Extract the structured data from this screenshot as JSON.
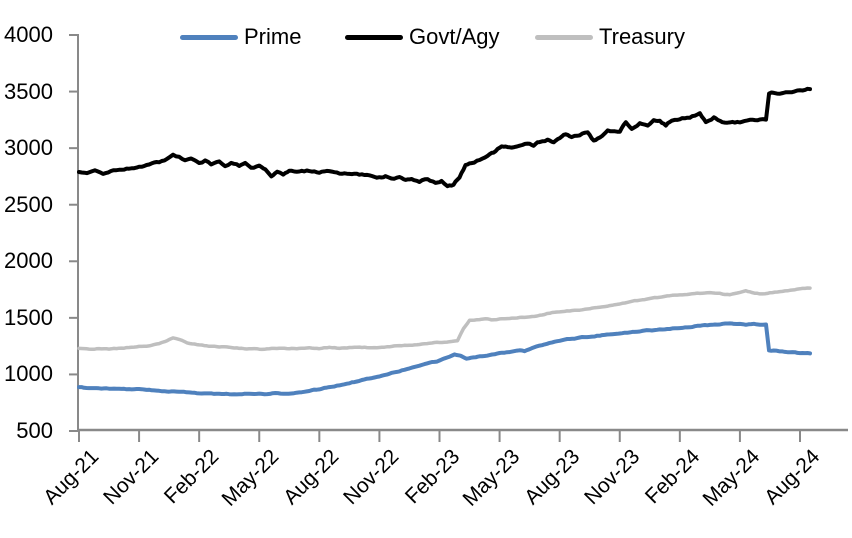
{
  "chart_data": {
    "type": "line",
    "title": "",
    "xlabel": "",
    "ylabel": "",
    "grid": false,
    "legend": {
      "position": "top"
    },
    "axis_color": "#898989",
    "x_axis": {
      "months_span": 36,
      "tick_interval_months": 3,
      "tick_labels": [
        "Aug-21",
        "Nov-21",
        "Feb-22",
        "May-22",
        "Aug-22",
        "Nov-22",
        "Feb-23",
        "May-23",
        "Aug-23",
        "Nov-23",
        "Feb-24",
        "May-24",
        "Aug-24"
      ]
    },
    "y_axis": {
      "min": 500,
      "max": 4000,
      "ticks": [
        4000,
        3500,
        3000,
        2500,
        2000,
        1500,
        1000,
        500
      ]
    },
    "series": [
      {
        "name": "Prime",
        "color": "#4F81BD",
        "points": [
          [
            0,
            885
          ],
          [
            0.5,
            880
          ],
          [
            1,
            877
          ],
          [
            1.5,
            874
          ],
          [
            2,
            872
          ],
          [
            2.5,
            870
          ],
          [
            3,
            868
          ],
          [
            3.5,
            863
          ],
          [
            4,
            857
          ],
          [
            4.5,
            851
          ],
          [
            5,
            845
          ],
          [
            5.5,
            840
          ],
          [
            6,
            835
          ],
          [
            6.5,
            830
          ],
          [
            7,
            827
          ],
          [
            7.5,
            825
          ],
          [
            8,
            827
          ],
          [
            8.5,
            830
          ],
          [
            9,
            833
          ],
          [
            9.4,
            829
          ],
          [
            9.8,
            835
          ],
          [
            10.2,
            830
          ],
          [
            10.6,
            834
          ],
          [
            11,
            843
          ],
          [
            11.5,
            852
          ],
          [
            12,
            870
          ],
          [
            12.5,
            888
          ],
          [
            13,
            906
          ],
          [
            13.5,
            925
          ],
          [
            14,
            944
          ],
          [
            14.5,
            965
          ],
          [
            15,
            986
          ],
          [
            15.5,
            1008
          ],
          [
            16,
            1030
          ],
          [
            16.5,
            1053
          ],
          [
            17,
            1076
          ],
          [
            17.5,
            1099
          ],
          [
            18,
            1122
          ],
          [
            18.4,
            1150
          ],
          [
            18.75,
            1176
          ],
          [
            19.05,
            1168
          ],
          [
            19.35,
            1140
          ],
          [
            19.7,
            1150
          ],
          [
            20,
            1158
          ],
          [
            20.5,
            1172
          ],
          [
            21,
            1188
          ],
          [
            21.5,
            1200
          ],
          [
            22,
            1213
          ],
          [
            22.25,
            1207
          ],
          [
            22.6,
            1235
          ],
          [
            23,
            1256
          ],
          [
            23.5,
            1278
          ],
          [
            24,
            1300
          ],
          [
            24.5,
            1313
          ],
          [
            25,
            1325
          ],
          [
            25.5,
            1335
          ],
          [
            26,
            1345
          ],
          [
            26.5,
            1355
          ],
          [
            27,
            1364
          ],
          [
            27.5,
            1372
          ],
          [
            28,
            1380
          ],
          [
            28.35,
            1396
          ],
          [
            28.6,
            1386
          ],
          [
            29,
            1397
          ],
          [
            29.5,
            1405
          ],
          [
            30,
            1412
          ],
          [
            30.5,
            1421
          ],
          [
            31,
            1430
          ],
          [
            31.5,
            1437
          ],
          [
            32,
            1443
          ],
          [
            32.4,
            1452
          ],
          [
            32.7,
            1444
          ],
          [
            33,
            1448
          ],
          [
            33.3,
            1438
          ],
          [
            33.7,
            1446
          ],
          [
            34,
            1437
          ],
          [
            34.3,
            1441
          ],
          [
            34.45,
            1213
          ],
          [
            34.8,
            1208
          ],
          [
            35,
            1206
          ],
          [
            35.5,
            1196
          ],
          [
            36,
            1190
          ],
          [
            36.5,
            1186
          ]
        ]
      },
      {
        "name": "Govt/Agy",
        "color": "#000000",
        "points": [
          [
            0,
            2790
          ],
          [
            0.4,
            2770
          ],
          [
            0.8,
            2793
          ],
          [
            1.2,
            2776
          ],
          [
            1.6,
            2798
          ],
          [
            2,
            2806
          ],
          [
            2.5,
            2818
          ],
          [
            3,
            2830
          ],
          [
            3.5,
            2850
          ],
          [
            4,
            2876
          ],
          [
            4.4,
            2903
          ],
          [
            4.7,
            2938
          ],
          [
            5,
            2918
          ],
          [
            5.3,
            2886
          ],
          [
            5.6,
            2904
          ],
          [
            6,
            2862
          ],
          [
            6.3,
            2888
          ],
          [
            6.6,
            2856
          ],
          [
            7,
            2876
          ],
          [
            7.3,
            2848
          ],
          [
            7.6,
            2868
          ],
          [
            8,
            2842
          ],
          [
            8.3,
            2862
          ],
          [
            8.6,
            2830
          ],
          [
            9,
            2846
          ],
          [
            9.3,
            2818
          ],
          [
            9.6,
            2756
          ],
          [
            9.9,
            2798
          ],
          [
            10.2,
            2772
          ],
          [
            10.5,
            2798
          ],
          [
            11,
            2788
          ],
          [
            11.5,
            2800
          ],
          [
            12,
            2790
          ],
          [
            12.5,
            2794
          ],
          [
            13,
            2774
          ],
          [
            13.5,
            2780
          ],
          [
            14,
            2762
          ],
          [
            14.5,
            2766
          ],
          [
            15,
            2742
          ],
          [
            15.3,
            2750
          ],
          [
            15.6,
            2722
          ],
          [
            16,
            2740
          ],
          [
            16.3,
            2712
          ],
          [
            16.6,
            2736
          ],
          [
            17,
            2708
          ],
          [
            17.4,
            2726
          ],
          [
            17.8,
            2692
          ],
          [
            18.1,
            2708
          ],
          [
            18.4,
            2668
          ],
          [
            18.7,
            2680
          ],
          [
            19,
            2744
          ],
          [
            19.3,
            2850
          ],
          [
            19.6,
            2870
          ],
          [
            20,
            2898
          ],
          [
            20.4,
            2936
          ],
          [
            20.7,
            2960
          ],
          [
            21,
            3004
          ],
          [
            21.3,
            3020
          ],
          [
            21.6,
            3000
          ],
          [
            22,
            3030
          ],
          [
            22.4,
            3040
          ],
          [
            22.7,
            3022
          ],
          [
            23,
            3056
          ],
          [
            23.4,
            3074
          ],
          [
            23.7,
            3052
          ],
          [
            24,
            3086
          ],
          [
            24.3,
            3126
          ],
          [
            24.6,
            3104
          ],
          [
            25,
            3120
          ],
          [
            25.4,
            3140
          ],
          [
            25.7,
            3062
          ],
          [
            26,
            3086
          ],
          [
            26.4,
            3150
          ],
          [
            27,
            3140
          ],
          [
            27.3,
            3230
          ],
          [
            27.6,
            3180
          ],
          [
            28,
            3220
          ],
          [
            28.4,
            3192
          ],
          [
            28.7,
            3240
          ],
          [
            29,
            3250
          ],
          [
            29.3,
            3198
          ],
          [
            29.6,
            3250
          ],
          [
            30,
            3260
          ],
          [
            30.5,
            3270
          ],
          [
            31,
            3310
          ],
          [
            31.3,
            3228
          ],
          [
            31.7,
            3270
          ],
          [
            32,
            3236
          ],
          [
            32.5,
            3222
          ],
          [
            33,
            3232
          ],
          [
            33.5,
            3246
          ],
          [
            34,
            3256
          ],
          [
            34.3,
            3252
          ],
          [
            34.45,
            3478
          ],
          [
            34.7,
            3490
          ],
          [
            35,
            3482
          ],
          [
            35.3,
            3500
          ],
          [
            35.6,
            3490
          ],
          [
            36,
            3506
          ],
          [
            36.5,
            3522
          ]
        ]
      },
      {
        "name": "Treasury",
        "color": "#BFBFBF",
        "points": [
          [
            0,
            1230
          ],
          [
            0.5,
            1223
          ],
          [
            1,
            1228
          ],
          [
            1.5,
            1224
          ],
          [
            2,
            1231
          ],
          [
            2.5,
            1237
          ],
          [
            3,
            1245
          ],
          [
            3.5,
            1255
          ],
          [
            4,
            1271
          ],
          [
            4.4,
            1298
          ],
          [
            4.7,
            1325
          ],
          [
            5,
            1312
          ],
          [
            5.4,
            1282
          ],
          [
            6,
            1258
          ],
          [
            6.5,
            1250
          ],
          [
            7,
            1244
          ],
          [
            7.5,
            1237
          ],
          [
            8,
            1232
          ],
          [
            8.5,
            1227
          ],
          [
            9,
            1222
          ],
          [
            9.5,
            1227
          ],
          [
            10,
            1231
          ],
          [
            10.5,
            1226
          ],
          [
            11,
            1230
          ],
          [
            11.5,
            1234
          ],
          [
            12,
            1231
          ],
          [
            12.5,
            1237
          ],
          [
            13,
            1231
          ],
          [
            13.5,
            1237
          ],
          [
            14,
            1242
          ],
          [
            14.5,
            1236
          ],
          [
            15,
            1240
          ],
          [
            15.5,
            1247
          ],
          [
            16,
            1252
          ],
          [
            16.5,
            1258
          ],
          [
            17,
            1264
          ],
          [
            17.5,
            1274
          ],
          [
            18,
            1283
          ],
          [
            18.5,
            1291
          ],
          [
            18.9,
            1297
          ],
          [
            19.2,
            1405
          ],
          [
            19.5,
            1476
          ],
          [
            20,
            1487
          ],
          [
            20.3,
            1495
          ],
          [
            20.6,
            1482
          ],
          [
            21,
            1491
          ],
          [
            21.5,
            1496
          ],
          [
            22,
            1503
          ],
          [
            22.5,
            1511
          ],
          [
            23,
            1521
          ],
          [
            23.5,
            1543
          ],
          [
            24,
            1555
          ],
          [
            24.5,
            1562
          ],
          [
            25,
            1571
          ],
          [
            25.5,
            1581
          ],
          [
            26,
            1597
          ],
          [
            26.5,
            1607
          ],
          [
            27,
            1621
          ],
          [
            27.5,
            1643
          ],
          [
            28,
            1657
          ],
          [
            28.5,
            1671
          ],
          [
            29,
            1683
          ],
          [
            29.5,
            1693
          ],
          [
            30,
            1700
          ],
          [
            30.5,
            1707
          ],
          [
            31,
            1717
          ],
          [
            31.5,
            1725
          ],
          [
            32,
            1714
          ],
          [
            32.5,
            1704
          ],
          [
            33,
            1727
          ],
          [
            33.3,
            1739
          ],
          [
            33.6,
            1724
          ],
          [
            34,
            1714
          ],
          [
            34.5,
            1721
          ],
          [
            35,
            1733
          ],
          [
            35.5,
            1744
          ],
          [
            36,
            1753
          ],
          [
            36.5,
            1763
          ]
        ]
      }
    ]
  }
}
